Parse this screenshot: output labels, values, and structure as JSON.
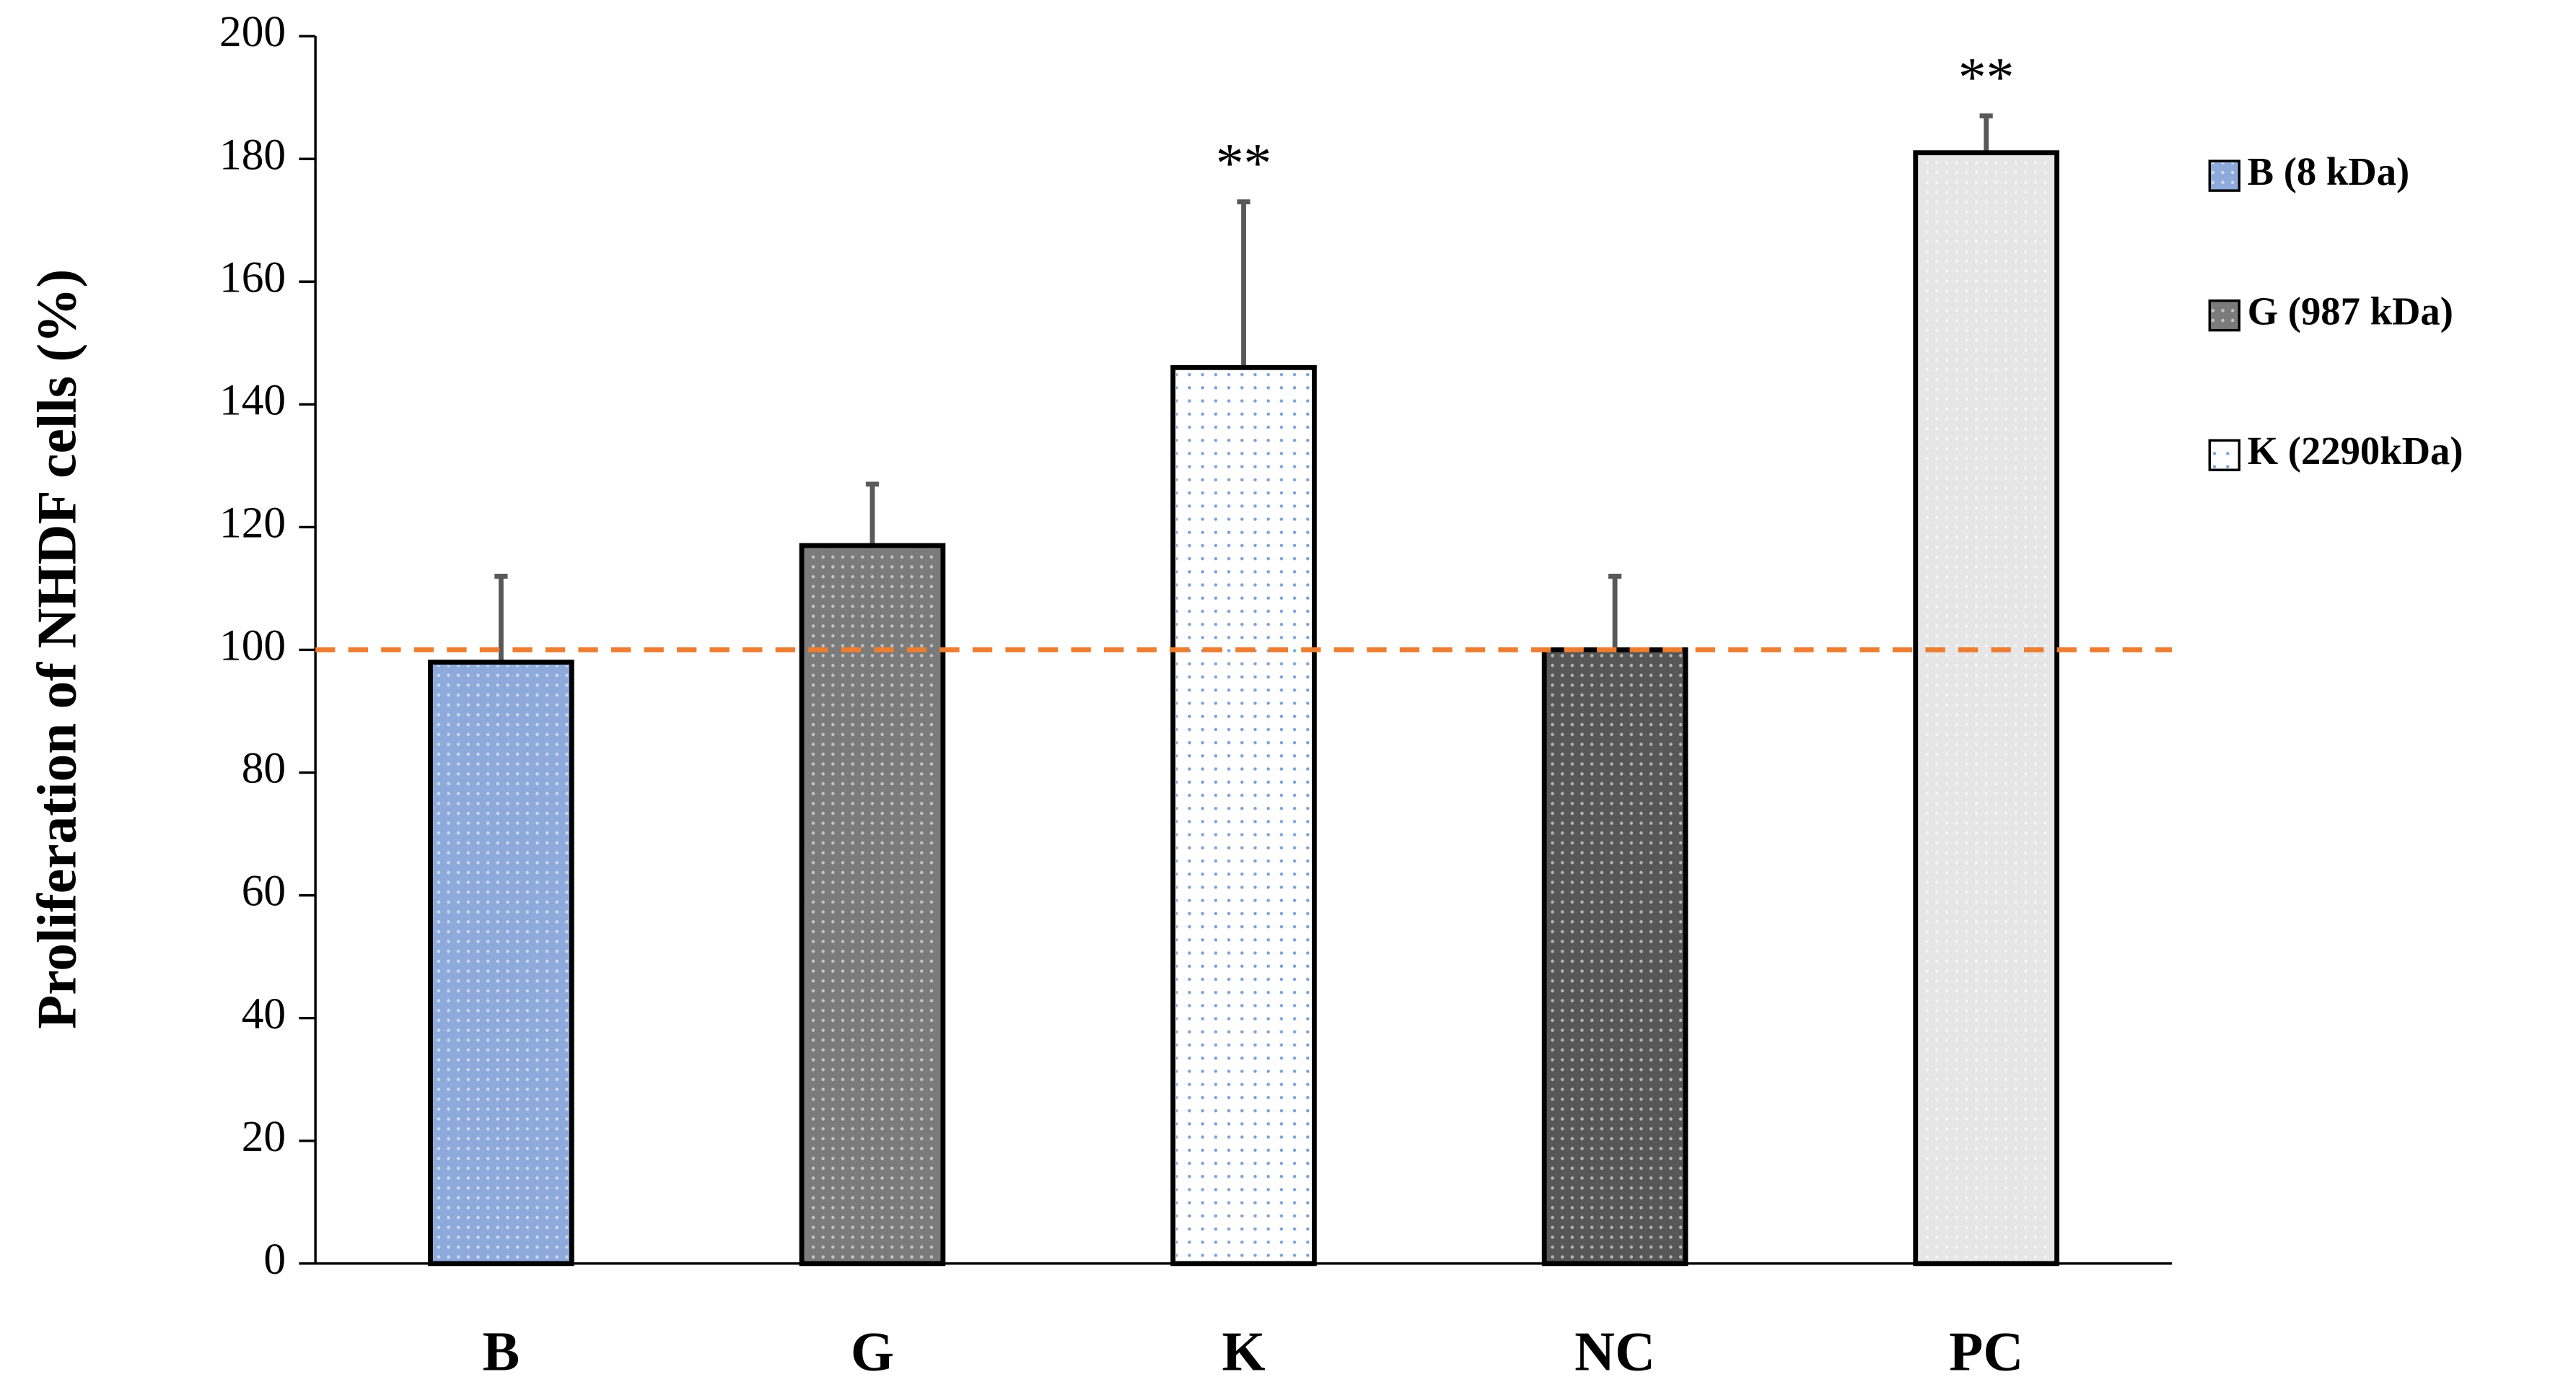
{
  "chart_data": {
    "type": "bar",
    "y_label": "Proliferation of NHDF cells (%)",
    "categories": [
      "B",
      "G",
      "K",
      "NC",
      "PC"
    ],
    "values": [
      98,
      117,
      146,
      100,
      181
    ],
    "errors": [
      14,
      10,
      27,
      12,
      6
    ],
    "colors": [
      "#8eaadb",
      "#7b7b7b",
      "#ffffff",
      "#575757",
      "#e6e6e6"
    ],
    "ylim": [
      0,
      200
    ],
    "yticks": [
      0,
      20,
      40,
      60,
      80,
      100,
      120,
      140,
      160,
      180,
      200
    ],
    "reference_line": {
      "value": 100,
      "color": "#ed7d31",
      "style": "dashed"
    },
    "annotations": [
      {
        "text": "**",
        "category": "K"
      },
      {
        "text": "**",
        "category": "PC"
      }
    ],
    "legend": {
      "position": "right",
      "entries": [
        {
          "label": "B (8 kDa)",
          "color": "#8eaadb"
        },
        {
          "label": "G (987 kDa)",
          "color": "#7b7b7b"
        },
        {
          "label": "K (2290kDa)",
          "color": "#ffffff"
        }
      ]
    }
  }
}
